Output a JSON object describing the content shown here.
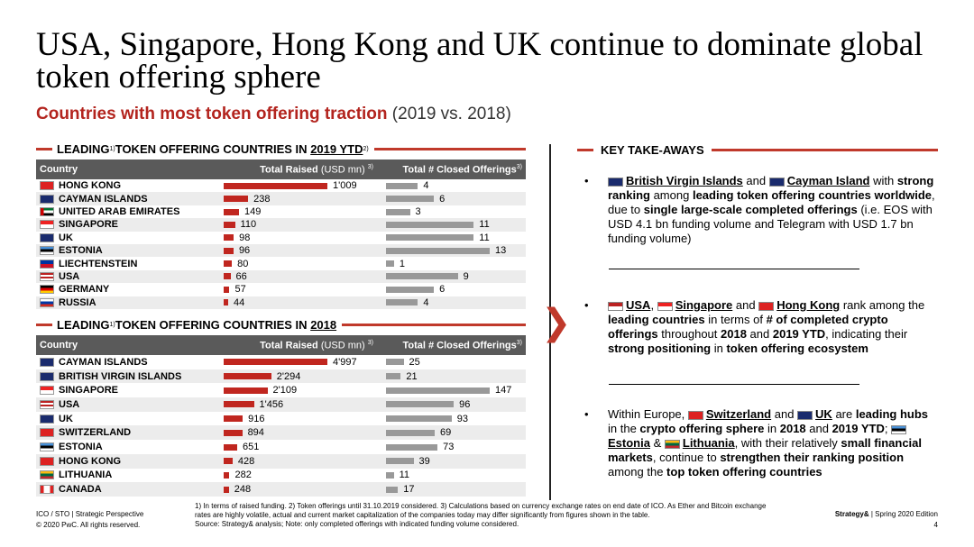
{
  "title": "USA, Singapore, Hong Kong and UK continue to dominate global token offering sphere",
  "subtitle": {
    "main": "Countries with most token offering traction",
    "years": "(2019 vs. 2018)"
  },
  "colors": {
    "accent": "#c0261f",
    "header_bg": "#5a5a5a",
    "offering_bar": "#999999"
  },
  "section1": {
    "pre": "LEADING",
    "sup": "1)",
    "mid": " TOKEN OFFERING COUNTRIES IN ",
    "year": "2019 YTD",
    "sup2": "2)"
  },
  "section2": {
    "pre": "LEADING",
    "sup": "1)",
    "mid": " TOKEN OFFERING COUNTRIES IN ",
    "year": "2018"
  },
  "table_headers": {
    "country": "Country",
    "raised": "Total Raised",
    "raised_unit": "(USD mn)",
    "raised_sup": "3)",
    "offerings": "Total # Closed Offerings",
    "offerings_sup": "3)"
  },
  "chart_data": [
    {
      "type": "table",
      "title": "LEADING TOKEN OFFERING COUNTRIES IN 2019 YTD",
      "columns": [
        "Country",
        "Total Raised (USD mn)",
        "Total # Closed Offerings"
      ],
      "rows": [
        {
          "country": "HONG KONG",
          "flag": "hk-flag",
          "raised": 1009,
          "raised_label": "1'009",
          "offerings": 4
        },
        {
          "country": "CAYMAN ISLANDS",
          "flag": "ky-flag",
          "raised": 238,
          "raised_label": "238",
          "offerings": 6
        },
        {
          "country": "UNITED ARAB EMIRATES",
          "flag": "ae-flag",
          "raised": 149,
          "raised_label": "149",
          "offerings": 3
        },
        {
          "country": "SINGAPORE",
          "flag": "sg-flag",
          "raised": 110,
          "raised_label": "110",
          "offerings": 11
        },
        {
          "country": "UK",
          "flag": "uk-flag",
          "raised": 98,
          "raised_label": "98",
          "offerings": 11
        },
        {
          "country": "ESTONIA",
          "flag": "ee-flag",
          "raised": 96,
          "raised_label": "96",
          "offerings": 13
        },
        {
          "country": "LIECHTENSTEIN",
          "flag": "li-flag",
          "raised": 80,
          "raised_label": "80",
          "offerings": 1
        },
        {
          "country": "USA",
          "flag": "us-flag",
          "raised": 66,
          "raised_label": "66",
          "offerings": 9
        },
        {
          "country": "GERMANY",
          "flag": "de-flag",
          "raised": 57,
          "raised_label": "57",
          "offerings": 6
        },
        {
          "country": "RUSSIA",
          "flag": "ru-flag",
          "raised": 44,
          "raised_label": "44",
          "offerings": 4
        }
      ]
    },
    {
      "type": "table",
      "title": "LEADING TOKEN OFFERING COUNTRIES IN 2018",
      "columns": [
        "Country",
        "Total Raised (USD mn)",
        "Total # Closed Offerings"
      ],
      "rows": [
        {
          "country": "CAYMAN ISLANDS",
          "flag": "ky-flag",
          "raised": 4997,
          "raised_label": "4'997",
          "offerings": 25
        },
        {
          "country": "BRITISH VIRGIN ISLANDS",
          "flag": "vg-flag",
          "raised": 2294,
          "raised_label": "2'294",
          "offerings": 21
        },
        {
          "country": "SINGAPORE",
          "flag": "sg-flag",
          "raised": 2109,
          "raised_label": "2'109",
          "offerings": 147
        },
        {
          "country": "USA",
          "flag": "us-flag",
          "raised": 1456,
          "raised_label": "1'456",
          "offerings": 96
        },
        {
          "country": "UK",
          "flag": "uk-flag",
          "raised": 916,
          "raised_label": "916",
          "offerings": 93
        },
        {
          "country": "SWITZERLAND",
          "flag": "ch-flag",
          "raised": 894,
          "raised_label": "894",
          "offerings": 69
        },
        {
          "country": "ESTONIA",
          "flag": "ee-flag",
          "raised": 651,
          "raised_label": "651",
          "offerings": 73
        },
        {
          "country": "HONG KONG",
          "flag": "hk-flag",
          "raised": 428,
          "raised_label": "428",
          "offerings": 39
        },
        {
          "country": "LITHUANIA",
          "flag": "lt-flag",
          "raised": 282,
          "raised_label": "282",
          "offerings": 11
        },
        {
          "country": "CANADA",
          "flag": "ca-flag",
          "raised": 248,
          "raised_label": "248",
          "offerings": 17
        }
      ]
    }
  ],
  "takeaways": {
    "heading": "KEY TAKE-AWAYS",
    "b1": {
      "bvi": "British Virgin Islands",
      "and1": " and ",
      "cayman": "Cayman Island",
      "with": " with ",
      "strong": "strong ranking",
      "among": " among ",
      "leading": "leading token offering countries worldwide",
      "due": ", due to ",
      "single": "single large-scale completed offerings",
      "rest": " (i.e. EOS with USD 4.1 bn funding volume and Telegram with USD 1.7 bn funding volume)"
    },
    "b2": {
      "usa": "USA",
      "comma": ", ",
      "sg": "Singapore",
      "and": " and ",
      "hk": "Hong Kong",
      "rank": " rank among the ",
      "leading": "leading countries",
      "terms": " in terms of ",
      "num": "# of completed crypto offerings",
      "throughout": " throughout ",
      "y2018": "2018",
      "and2": " and ",
      "y2019": "2019 YTD",
      "indicating": ", indicating their ",
      "strong": "strong positioning",
      "in": " in ",
      "eco": "token offering ecosystem"
    },
    "b3": {
      "within": "Within Europe, ",
      "ch": "Switzerland",
      "and": " and ",
      "uk": "UK",
      "are": " are ",
      "leading": "leading hubs",
      "in": " in the ",
      "crypto": "crypto offering sphere",
      "in2": " in ",
      "y2018": "2018",
      "and2": " and ",
      "y2019": "2019 YTD",
      "semi": "; ",
      "ee": "Estonia",
      "amp": " & ",
      "lt": "Lithuania",
      "with": ", with their relatively ",
      "small": "small financial markets",
      "cont": ", continue to ",
      "strengthen": "strengthen their ranking position",
      "among": " among the ",
      "top": "top token offering countries"
    }
  },
  "footer": {
    "left1": "ICO / STO | Strategic Perspective",
    "left2": "© 2020 PwC. All rights reserved.",
    "notes": "1) In terms of raised funding. 2) Token offerings until 31.10.2019 considered. 3) Calculations based on currency exchange rates on end date of ICO. As Ether and Bitcoin exchange rates are highly volatile, actual and current market capitalization of the companies today may differ significantly from figures shown in the table.",
    "source": "Source: Strategy& analysis; Note: only completed offerings with indicated funding volume considered.",
    "brand": "Strategy&",
    "edition": " | Spring 2020 Edition",
    "page": "4"
  }
}
